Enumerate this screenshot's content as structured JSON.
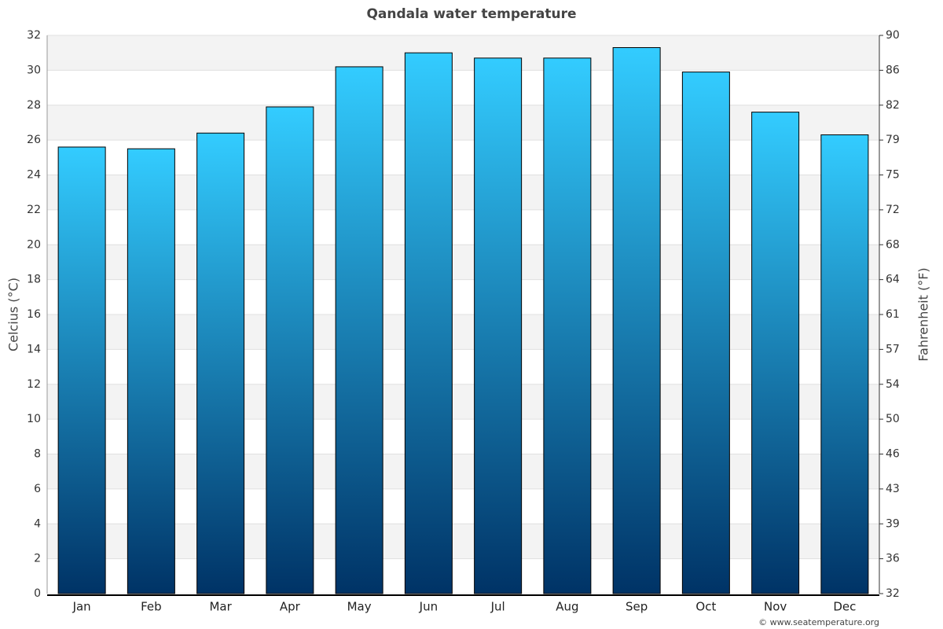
{
  "chart_data": {
    "type": "bar",
    "title": "Qandala water temperature",
    "y_label": "Celcius (°C)",
    "y2_label": "Fahrenheit (°F)",
    "footer": "© www.seatemperature.org",
    "categories": [
      "Jan",
      "Feb",
      "Mar",
      "Apr",
      "May",
      "Jun",
      "Jul",
      "Aug",
      "Sep",
      "Oct",
      "Nov",
      "Dec"
    ],
    "values": [
      25.6,
      25.5,
      26.4,
      27.9,
      30.2,
      31.0,
      30.7,
      30.7,
      31.3,
      29.9,
      27.6,
      26.3
    ],
    "gradient": [
      "#33ccff",
      "#003366"
    ],
    "ylim": [
      0,
      32
    ],
    "yticks": [
      0,
      2,
      4,
      6,
      8,
      10,
      12,
      14,
      16,
      18,
      20,
      22,
      24,
      26,
      28,
      30,
      32
    ],
    "y2lim": [
      32,
      89.6
    ],
    "y2ticks": [
      32,
      {
        "value": 35.6,
        "label": "36"
      },
      {
        "value": 39.2,
        "label": "39"
      },
      {
        "value": 42.8,
        "label": "43"
      },
      {
        "value": 46.4,
        "label": "46"
      },
      50,
      {
        "value": 53.6,
        "label": "54"
      },
      {
        "value": 57.2,
        "label": "57"
      },
      {
        "value": 60.8,
        "label": "61"
      },
      {
        "value": 64.4,
        "label": "64"
      },
      68,
      {
        "value": 71.6,
        "label": "72"
      },
      {
        "value": 75.2,
        "label": "75"
      },
      {
        "value": 78.8,
        "label": "79"
      },
      {
        "value": 82.4,
        "label": "82"
      },
      86,
      {
        "value": 89.6,
        "label": "90"
      }
    ],
    "grid": true
  }
}
